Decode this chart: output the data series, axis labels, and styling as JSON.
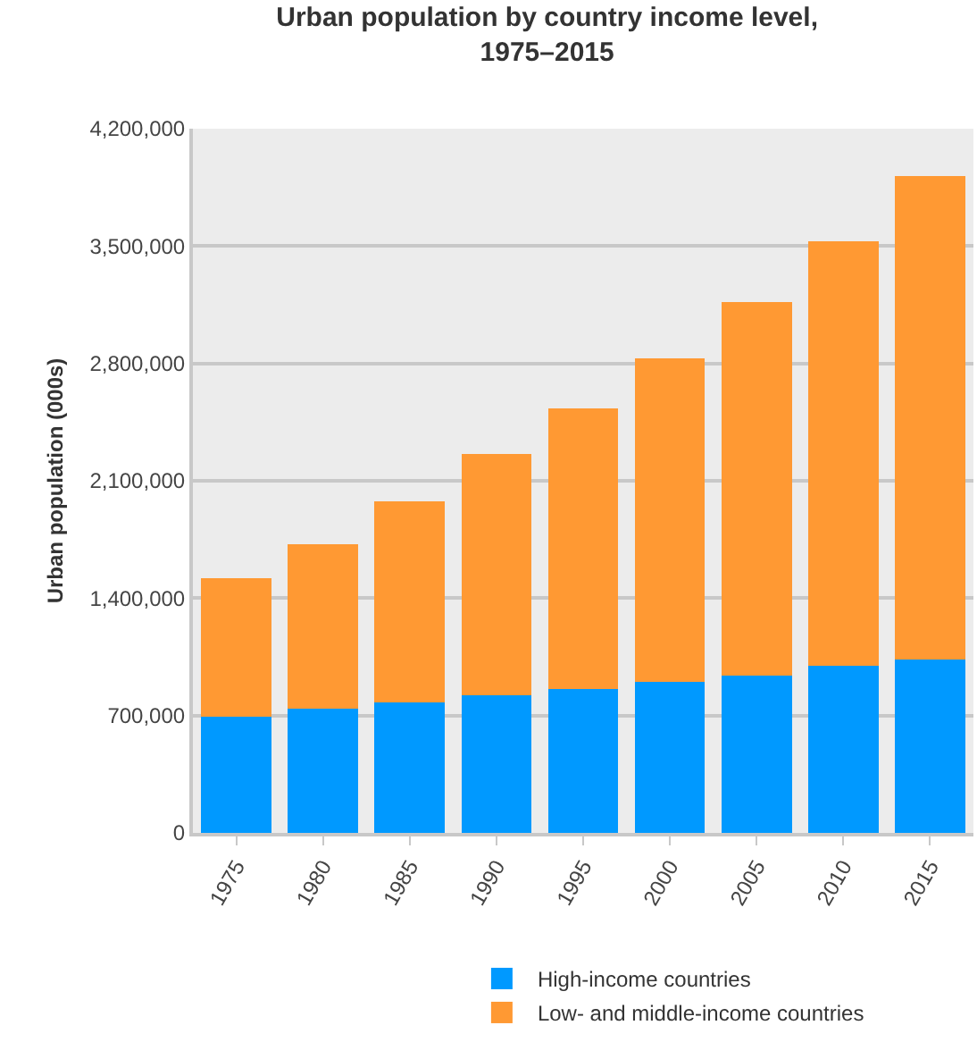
{
  "chart_data": {
    "type": "bar",
    "title": "Urban population by country income level,\n1975–2015",
    "ylabel": "Urban population (000s)",
    "categories": [
      "1975",
      "1980",
      "1985",
      "1990",
      "1995",
      "2000",
      "2005",
      "2010",
      "2015"
    ],
    "stacked": true,
    "series": [
      {
        "name": "High-income countries",
        "color": "#0099ff",
        "values": [
          695000,
          740000,
          778000,
          819000,
          860000,
          902000,
          940000,
          998000,
          1036000
        ]
      },
      {
        "name": "Low- and middle-income countries",
        "color": "#ff9933",
        "values": [
          823000,
          981000,
          1201000,
          1443000,
          1671000,
          1928000,
          2224000,
          2531000,
          2882000
        ]
      }
    ],
    "ylim": [
      0,
      4200000
    ],
    "yticks": [
      {
        "value": 0,
        "label": "0"
      },
      {
        "value": 700000,
        "label": "700,000"
      },
      {
        "value": 1400000,
        "label": "1,400,000"
      },
      {
        "value": 2100000,
        "label": "2,100,000"
      },
      {
        "value": 2800000,
        "label": "2,800,000"
      },
      {
        "value": 3500000,
        "label": "3,500,000"
      },
      {
        "value": 4200000,
        "label": "4,200,000"
      }
    ],
    "grid": "y",
    "legend": "bottom"
  }
}
